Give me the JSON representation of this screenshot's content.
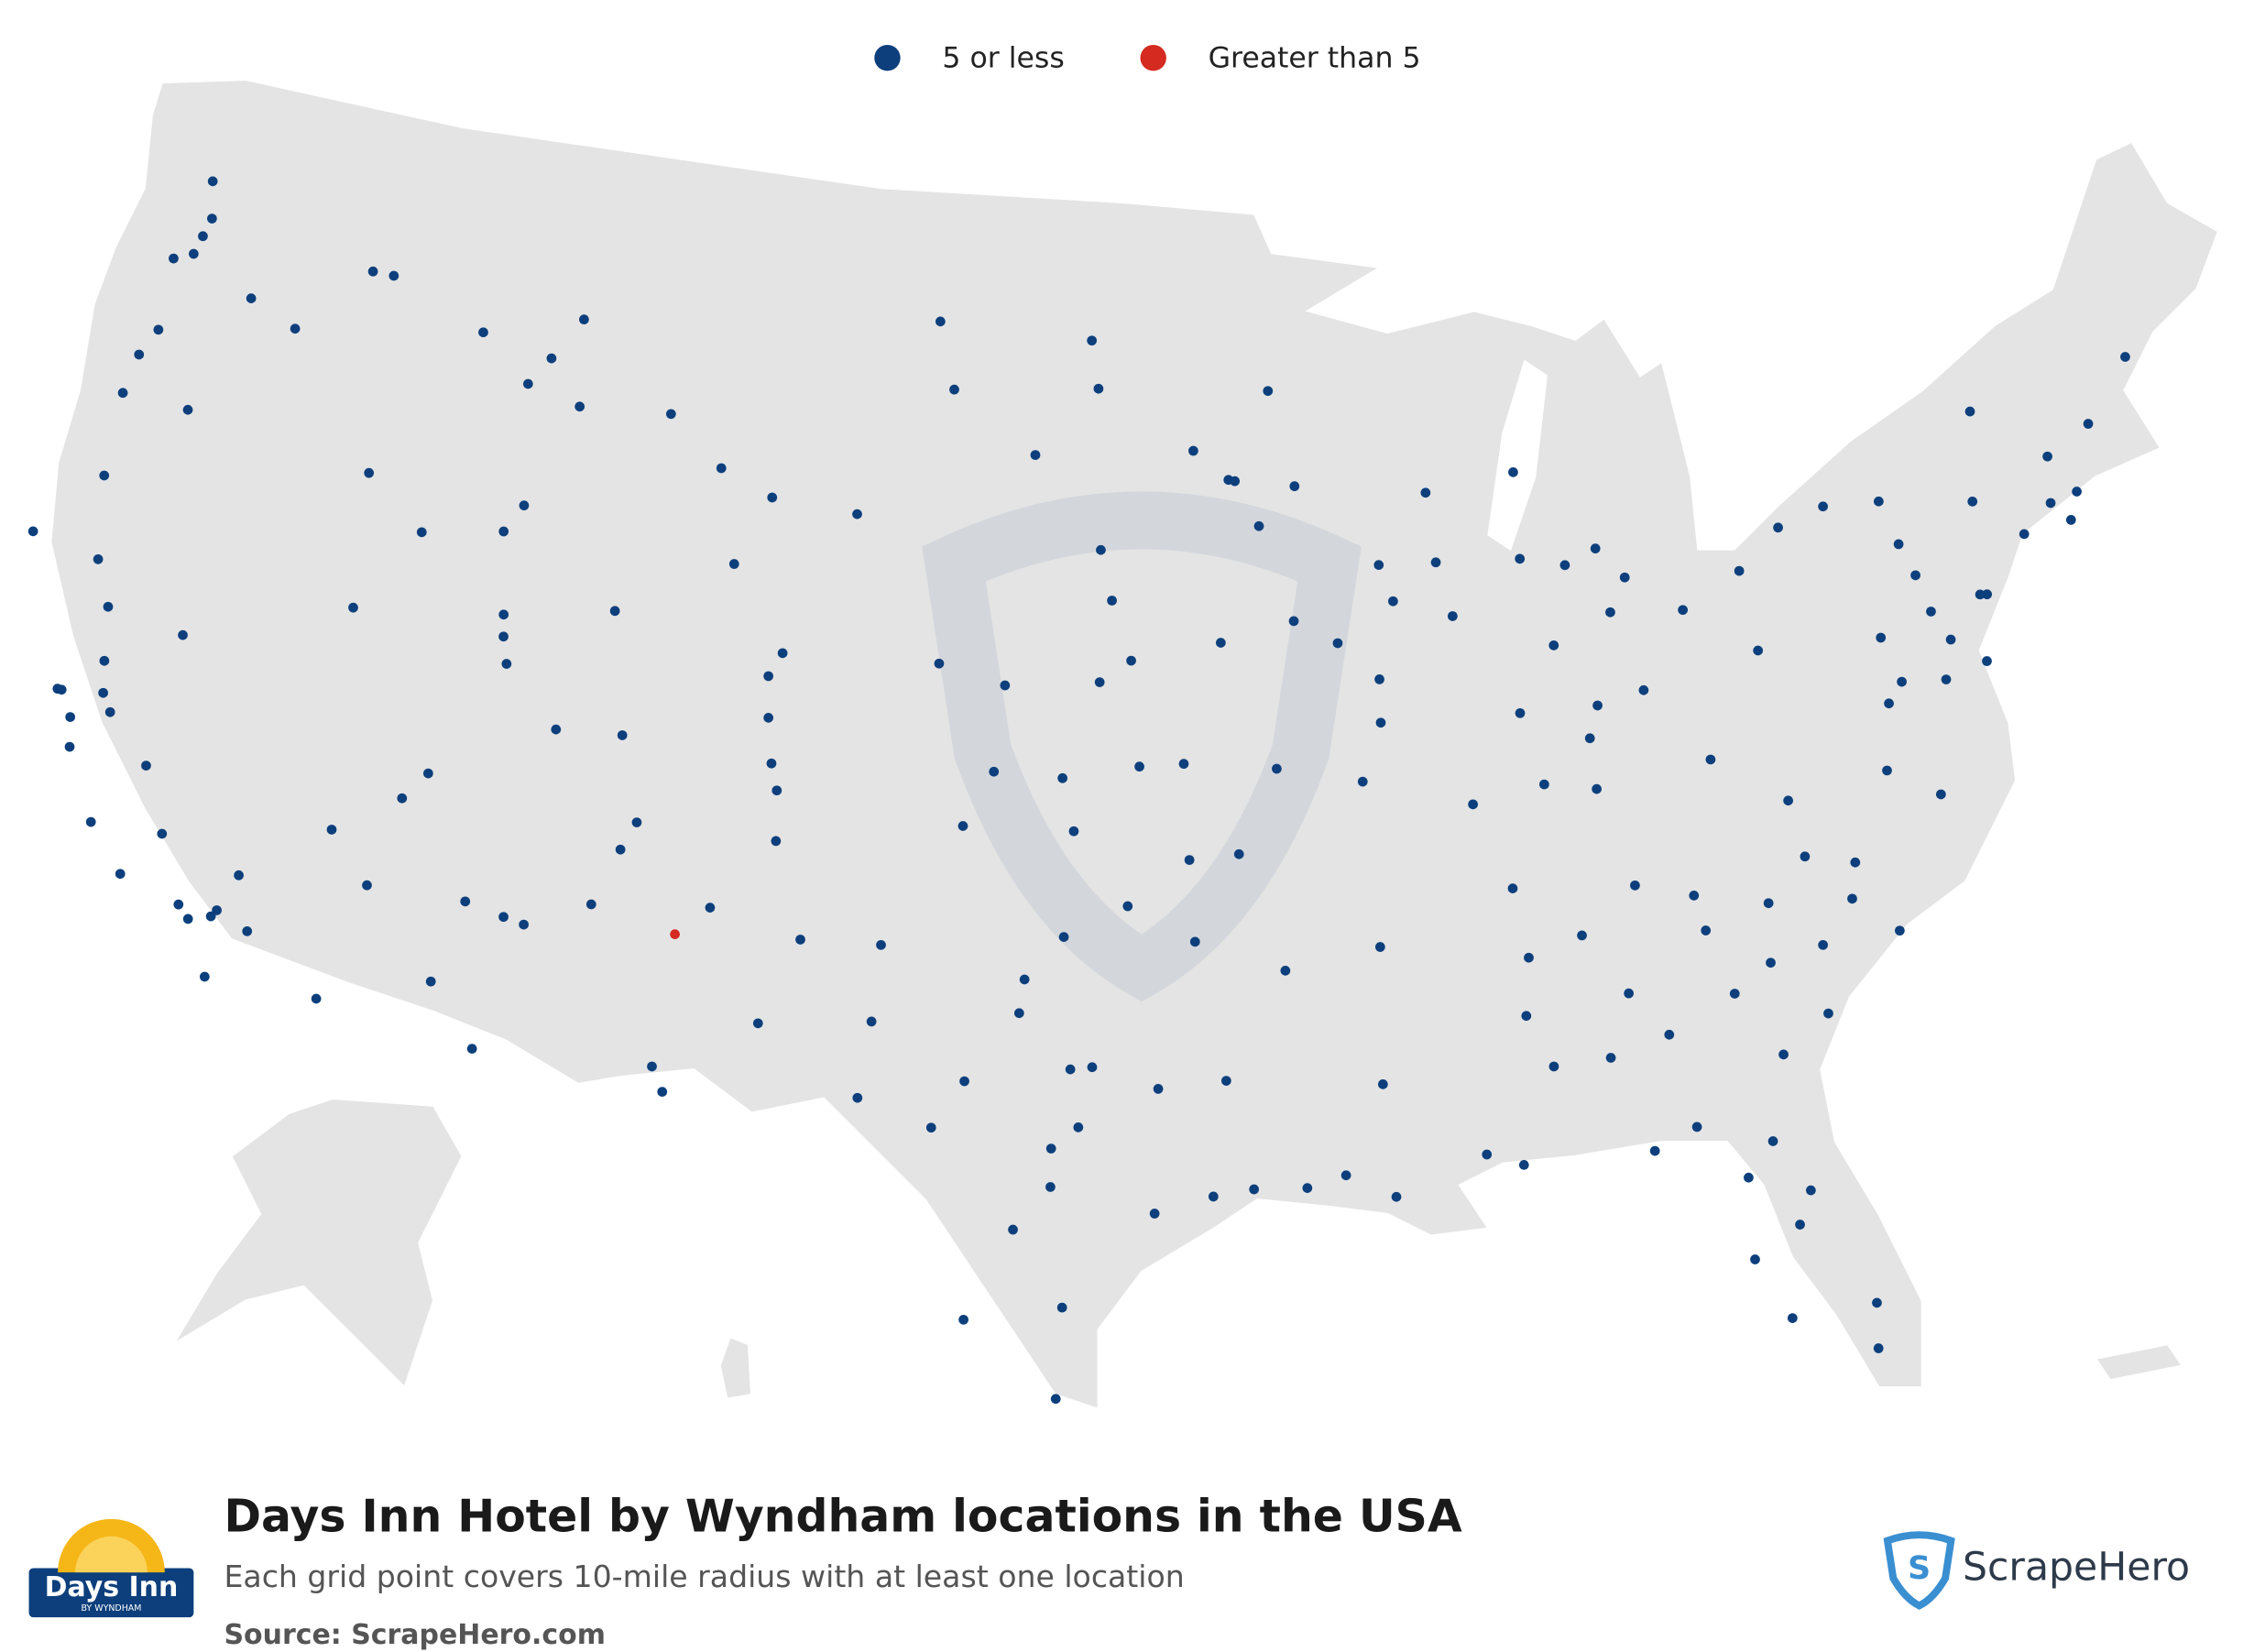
{
  "title": "Days Inn Hotel by Wyndham locations in the USA",
  "subtitle": "Each grid point covers 10-mile radius with at least one location",
  "source": "Source: ScrapeHero.com",
  "brand_logo": {
    "name": "Days Inn",
    "tagline": "BY WYNDHAM"
  },
  "publisher_logo": "ScrapeHero",
  "groups": [
    {
      "label": "5 or less",
      "color": "#0d3f7c",
      "points": [
        [
          -122.3,
          47.6
        ],
        [
          -122.4,
          47.2
        ],
        [
          -122.9,
          47.0
        ],
        [
          -122.2,
          48.0
        ],
        [
          -122.5,
          48.75
        ],
        [
          -117.4,
          47.7
        ],
        [
          -120.5,
          46.6
        ],
        [
          -119.1,
          46.2
        ],
        [
          -122.7,
          45.5
        ],
        [
          -123.0,
          44.9
        ],
        [
          -123.1,
          44.05
        ],
        [
          -122.9,
          42.3
        ],
        [
          -121.3,
          44.05
        ],
        [
          -116.2,
          43.6
        ],
        [
          -114.5,
          42.6
        ],
        [
          -112.4,
          42.9
        ],
        [
          -112.0,
          43.5
        ],
        [
          -116.8,
          47.7
        ],
        [
          -114.0,
          46.9
        ],
        [
          -112.0,
          46.6
        ],
        [
          -111.3,
          47.5
        ],
        [
          -108.5,
          45.8
        ],
        [
          -111.0,
          45.7
        ],
        [
          -112.5,
          46.0
        ],
        [
          -122.4,
          40.6
        ],
        [
          -124.2,
          40.8
        ],
        [
          -121.5,
          38.6
        ],
        [
          -122.4,
          37.8
        ],
        [
          -122.3,
          37.8
        ],
        [
          -121.9,
          37.3
        ],
        [
          -121.3,
          37.95
        ],
        [
          -121.0,
          37.6
        ],
        [
          -119.8,
          36.7
        ],
        [
          -119.0,
          35.4
        ],
        [
          -119.7,
          34.4
        ],
        [
          -118.2,
          34.05
        ],
        [
          -117.9,
          33.8
        ],
        [
          -117.4,
          33.95
        ],
        [
          -117.3,
          34.1
        ],
        [
          -117.2,
          32.7
        ],
        [
          -116.5,
          33.8
        ],
        [
          -117.0,
          34.9
        ],
        [
          -121.7,
          36.7
        ],
        [
          -120.7,
          35.3
        ],
        [
          -121.8,
          39.7
        ],
        [
          -119.8,
          39.5
        ],
        [
          -115.1,
          36.2
        ],
        [
          -115.8,
          40.8
        ],
        [
          -112.1,
          33.45
        ],
        [
          -110.9,
          32.2
        ],
        [
          -111.65,
          35.2
        ],
        [
          -114.0,
          35.2
        ],
        [
          -114.6,
          32.7
        ],
        [
          -110.7,
          35.0
        ],
        [
          -110.2,
          34.9
        ],
        [
          -111.9,
          40.75
        ],
        [
          -112.0,
          41.2
        ],
        [
          -111.7,
          40.2
        ],
        [
          -113.6,
          37.1
        ],
        [
          -113.1,
          37.7
        ],
        [
          -110.2,
          39.0
        ],
        [
          -104.99,
          39.74
        ],
        [
          -104.8,
          38.8
        ],
        [
          -104.6,
          38.25
        ],
        [
          -105.1,
          40.6
        ],
        [
          -108.55,
          39.06
        ],
        [
          -107.9,
          37.3
        ],
        [
          -104.5,
          37.2
        ],
        [
          -104.8,
          41.1
        ],
        [
          -106.3,
          42.85
        ],
        [
          -109.2,
          41.6
        ],
        [
          -106.95,
          44.8
        ],
        [
          -105.5,
          44.3
        ],
        [
          -105.9,
          35.7
        ],
        [
          -106.8,
          32.3
        ],
        [
          -108.7,
          35.5
        ],
        [
          -104.5,
          33.4
        ],
        [
          -103.7,
          35.2
        ],
        [
          -108.2,
          36.7
        ],
        [
          -96.8,
          46.9
        ],
        [
          -100.8,
          46.8
        ],
        [
          -101.3,
          48.2
        ],
        [
          -96.7,
          43.55
        ],
        [
          -103.2,
          44.1
        ],
        [
          -98.5,
          45.5
        ],
        [
          -97.0,
          47.9
        ],
        [
          -95.9,
          41.25
        ],
        [
          -96.7,
          40.8
        ],
        [
          -100.8,
          41.1
        ],
        [
          -99.1,
          40.7
        ],
        [
          -97.3,
          37.7
        ],
        [
          -95.7,
          39.05
        ],
        [
          -97.6,
          38.8
        ],
        [
          -99.3,
          38.9
        ],
        [
          -100.0,
          37.75
        ],
        [
          -94.6,
          39.1
        ],
        [
          -97.5,
          35.5
        ],
        [
          -95.99,
          36.15
        ],
        [
          -98.4,
          34.6
        ],
        [
          -101.8,
          35.2
        ],
        [
          -101.9,
          33.6
        ],
        [
          -96.8,
          32.8
        ],
        [
          -97.3,
          32.75
        ],
        [
          -97.7,
          30.3
        ],
        [
          -98.5,
          29.4
        ],
        [
          -95.4,
          29.76
        ],
        [
          -106.5,
          31.8
        ],
        [
          -102.1,
          32.0
        ],
        [
          -99.7,
          32.45
        ],
        [
          -97.1,
          31.55
        ],
        [
          -97.4,
          27.8
        ],
        [
          -97.5,
          25.9
        ],
        [
          -99.5,
          27.5
        ],
        [
          -94.1,
          30.1
        ],
        [
          -95.3,
          32.35
        ],
        [
          -97.7,
          31.1
        ],
        [
          -100.4,
          31.46
        ],
        [
          -98.5,
          33.9
        ],
        [
          -93.27,
          44.98
        ],
        [
          -93.1,
          44.95
        ],
        [
          -92.1,
          46.8
        ],
        [
          -92.5,
          44.0
        ],
        [
          -94.2,
          45.6
        ],
        [
          -93.6,
          41.6
        ],
        [
          -91.7,
          42.0
        ],
        [
          -90.6,
          41.5
        ],
        [
          -96.4,
          42.5
        ],
        [
          -89.4,
          43.07
        ],
        [
          -87.9,
          43.04
        ],
        [
          -88.0,
          44.5
        ],
        [
          -91.5,
          44.8
        ],
        [
          -87.6,
          41.9
        ],
        [
          -89.65,
          39.8
        ],
        [
          -89.6,
          40.7
        ],
        [
          -89.1,
          42.3
        ],
        [
          -90.2,
          38.6
        ],
        [
          -93.3,
          37.2
        ],
        [
          -92.3,
          38.95
        ],
        [
          -94.5,
          37.1
        ],
        [
          -86.15,
          39.77
        ],
        [
          -85.1,
          41.1
        ],
        [
          -87.55,
          37.97
        ],
        [
          -83.05,
          42.33
        ],
        [
          -85.7,
          42.96
        ],
        [
          -84.55,
          42.73
        ],
        [
          -83.7,
          43.0
        ],
        [
          -85.6,
          44.76
        ],
        [
          -83.0,
          39.96
        ],
        [
          -81.7,
          41.5
        ],
        [
          -84.5,
          39.1
        ],
        [
          -83.55,
          41.65
        ],
        [
          -84.2,
          39.76
        ],
        [
          -85.76,
          38.25
        ],
        [
          -84.5,
          38.04
        ],
        [
          -90.05,
          35.15
        ],
        [
          -86.8,
          36.16
        ],
        [
          -83.9,
          35.96
        ],
        [
          -85.3,
          35.05
        ],
        [
          -92.3,
          34.75
        ],
        [
          -94.4,
          35.4
        ],
        [
          -90.2,
          32.3
        ],
        [
          -86.8,
          33.5
        ],
        [
          -86.3,
          32.4
        ],
        [
          -88.0,
          30.7
        ],
        [
          -86.6,
          34.7
        ],
        [
          -84.39,
          33.75
        ],
        [
          -83.6,
          32.8
        ],
        [
          -81.1,
          32.08
        ],
        [
          -81.97,
          33.47
        ],
        [
          -84.99,
          32.46
        ],
        [
          -83.28,
          30.83
        ],
        [
          -84.28,
          30.44
        ],
        [
          -81.66,
          30.33
        ],
        [
          -81.38,
          28.54
        ],
        [
          -82.46,
          27.95
        ],
        [
          -80.19,
          25.76
        ],
        [
          -81.87,
          26.64
        ],
        [
          -81.02,
          29.21
        ],
        [
          -82.32,
          29.65
        ],
        [
          -87.2,
          30.42
        ],
        [
          -80.05,
          26.7
        ],
        [
          -80.84,
          35.23
        ],
        [
          -78.64,
          35.78
        ],
        [
          -79.79,
          36.07
        ],
        [
          -77.94,
          34.23
        ],
        [
          -78.88,
          35.05
        ],
        [
          -82.55,
          35.6
        ],
        [
          -81.03,
          34.0
        ],
        [
          -79.93,
          32.78
        ],
        [
          -82.4,
          34.85
        ],
        [
          -79.76,
          34.2
        ],
        [
          -90.07,
          29.95
        ],
        [
          -91.15,
          30.45
        ],
        [
          -93.75,
          32.5
        ],
        [
          -92.02,
          30.22
        ],
        [
          -93.2,
          30.23
        ],
        [
          -77.44,
          37.54
        ],
        [
          -76.29,
          36.85
        ],
        [
          -79.94,
          37.27
        ],
        [
          -81.63,
          38.35
        ],
        [
          -77.04,
          38.9
        ],
        [
          -76.61,
          39.29
        ],
        [
          -75.17,
          39.95
        ],
        [
          -79.99,
          40.44
        ],
        [
          -76.88,
          40.27
        ],
        [
          -75.66,
          41.4
        ],
        [
          -75.49,
          40.6
        ],
        [
          -74.0,
          40.71
        ],
        [
          -74.17,
          40.74
        ],
        [
          -73.76,
          42.65
        ],
        [
          -76.15,
          43.05
        ],
        [
          -78.88,
          42.89
        ],
        [
          -77.61,
          43.16
        ],
        [
          -75.9,
          42.1
        ],
        [
          -72.68,
          41.76
        ],
        [
          -71.41,
          41.82
        ],
        [
          -71.06,
          42.36
        ],
        [
          -71.8,
          42.26
        ],
        [
          -70.26,
          43.66
        ],
        [
          -68.77,
          44.8
        ],
        [
          -73.21,
          44.48
        ],
        [
          -71.54,
          43.21
        ],
        [
          -74.42,
          39.36
        ],
        [
          -75.52,
          39.16
        ],
        [
          -80.09,
          42.13
        ]
      ]
    },
    {
      "label": "Greater than 5",
      "color": "#d42a20",
      "points": [
        [
          -106.65,
          35.08
        ]
      ]
    }
  ]
}
